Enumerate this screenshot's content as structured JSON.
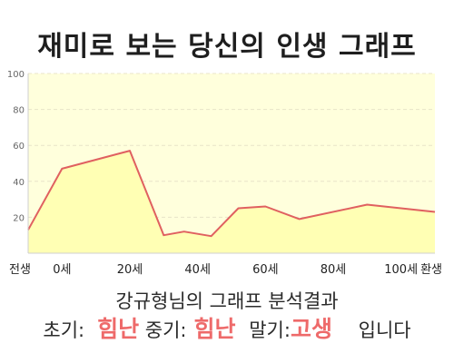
{
  "page": {
    "title": "재미로 보는 당신의 인생 그래프",
    "subtitle": "강규형님의 그래프 분석결과",
    "result": {
      "early_label": "초기:",
      "early_value": "힘난",
      "mid_label": "중기:",
      "mid_value": "힘난",
      "late_label": "말기:",
      "late_value": "고생",
      "suffix": "입니다"
    }
  },
  "colors": {
    "plot_bg": "#ffffdc",
    "area_fill": "#ffffb4",
    "line": "#e06060",
    "highlight_text": "#ee6a6a"
  },
  "chart_data": {
    "type": "area",
    "title": "",
    "xlabel": "",
    "ylabel": "",
    "ylim": [
      0,
      100
    ],
    "yticks": [
      20,
      40,
      60,
      80,
      100
    ],
    "xlim": [
      -10,
      110
    ],
    "xticks": [
      {
        "value": -10,
        "label": "전생"
      },
      {
        "value": 0,
        "label": "0세"
      },
      {
        "value": 20,
        "label": "20세"
      },
      {
        "value": 40,
        "label": "40세"
      },
      {
        "value": 60,
        "label": "60세"
      },
      {
        "value": 80,
        "label": "80세"
      },
      {
        "value": 100,
        "label": "100세"
      },
      {
        "value": 110,
        "label": "환생"
      }
    ],
    "grid": true,
    "series": [
      {
        "points": [
          {
            "x": -10,
            "y": 13
          },
          {
            "x": 0,
            "y": 47
          },
          {
            "x": 20,
            "y": 57
          },
          {
            "x": 30,
            "y": 10
          },
          {
            "x": 36,
            "y": 12
          },
          {
            "x": 44,
            "y": 9.5
          },
          {
            "x": 52,
            "y": 25
          },
          {
            "x": 60,
            "y": 26
          },
          {
            "x": 70,
            "y": 19
          },
          {
            "x": 90,
            "y": 27
          },
          {
            "x": 110,
            "y": 23
          }
        ]
      }
    ]
  }
}
